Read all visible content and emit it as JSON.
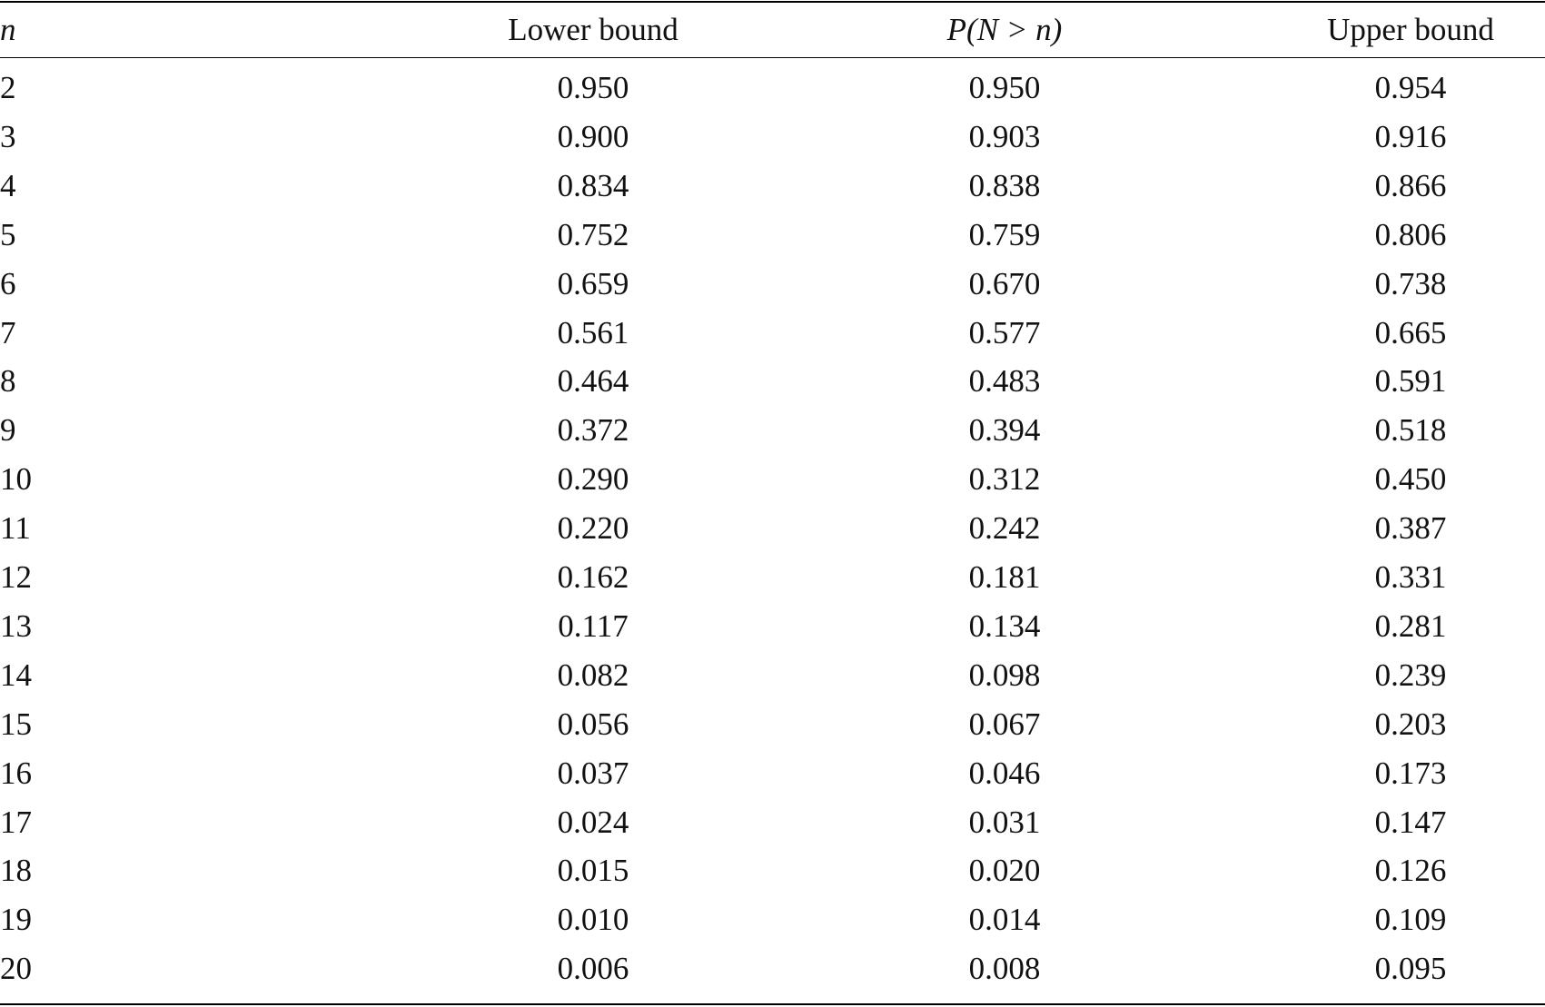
{
  "table": {
    "header": [
      "n",
      "Lower bound",
      "P(N > n)",
      "Upper bound"
    ],
    "rows": [
      [
        2,
        "0.950",
        "0.950",
        "0.954"
      ],
      [
        3,
        "0.900",
        "0.903",
        "0.916"
      ],
      [
        4,
        "0.834",
        "0.838",
        "0.866"
      ],
      [
        5,
        "0.752",
        "0.759",
        "0.806"
      ],
      [
        6,
        "0.659",
        "0.670",
        "0.738"
      ],
      [
        7,
        "0.561",
        "0.577",
        "0.665"
      ],
      [
        8,
        "0.464",
        "0.483",
        "0.591"
      ],
      [
        9,
        "0.372",
        "0.394",
        "0.518"
      ],
      [
        10,
        "0.290",
        "0.312",
        "0.450"
      ],
      [
        11,
        "0.220",
        "0.242",
        "0.387"
      ],
      [
        12,
        "0.162",
        "0.181",
        "0.331"
      ],
      [
        13,
        "0.117",
        "0.134",
        "0.281"
      ],
      [
        14,
        "0.082",
        "0.098",
        "0.239"
      ],
      [
        15,
        "0.056",
        "0.067",
        "0.203"
      ],
      [
        16,
        "0.037",
        "0.046",
        "0.173"
      ],
      [
        17,
        "0.024",
        "0.031",
        "0.147"
      ],
      [
        18,
        "0.015",
        "0.020",
        "0.126"
      ],
      [
        19,
        "0.010",
        "0.014",
        "0.109"
      ],
      [
        20,
        "0.006",
        "0.008",
        "0.095"
      ]
    ]
  }
}
